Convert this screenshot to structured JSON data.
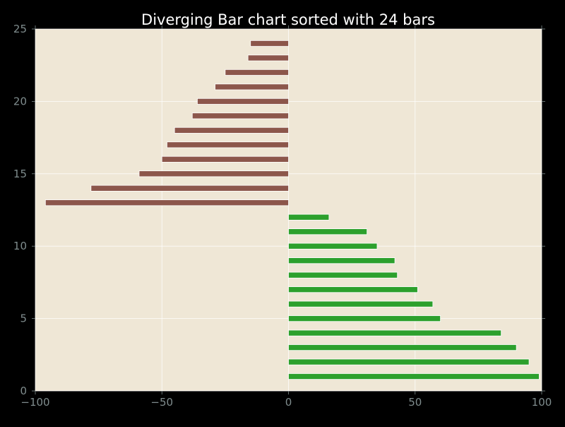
{
  "chart_data": {
    "type": "bar",
    "orientation": "horizontal",
    "title": "Diverging Bar chart sorted with 24 bars",
    "xlabel": "",
    "ylabel": "",
    "xlim": [
      -100,
      100
    ],
    "ylim": [
      0,
      25
    ],
    "x_ticks": [
      -100,
      -50,
      0,
      50,
      100
    ],
    "x_tick_labels": [
      "−100",
      "−50",
      "0",
      "50",
      "100"
    ],
    "y_ticks": [
      0,
      5,
      10,
      15,
      20,
      25
    ],
    "y_tick_labels": [
      "0",
      "5",
      "10",
      "15",
      "20",
      "25"
    ],
    "grid": true,
    "legend": "none",
    "colors": {
      "figure_background": "#000000",
      "plot_background": "#efe7d6",
      "positive_bar": "#2ca02c",
      "negative_bar": "#8c564b",
      "bar_edge": "#ffffff",
      "grid": "#ffffff",
      "tick_label": "#7f8c8d",
      "title": "#ffffff",
      "axis_spine": "#000000"
    },
    "bars": [
      {
        "y": 1,
        "value": 99
      },
      {
        "y": 2,
        "value": 95
      },
      {
        "y": 3,
        "value": 90
      },
      {
        "y": 4,
        "value": 84
      },
      {
        "y": 5,
        "value": 60
      },
      {
        "y": 6,
        "value": 57
      },
      {
        "y": 7,
        "value": 51
      },
      {
        "y": 8,
        "value": 43
      },
      {
        "y": 9,
        "value": 42
      },
      {
        "y": 10,
        "value": 35
      },
      {
        "y": 11,
        "value": 31
      },
      {
        "y": 12,
        "value": 16
      },
      {
        "y": 13,
        "value": -96
      },
      {
        "y": 14,
        "value": -78
      },
      {
        "y": 15,
        "value": -59
      },
      {
        "y": 16,
        "value": -50
      },
      {
        "y": 17,
        "value": -48
      },
      {
        "y": 18,
        "value": -45
      },
      {
        "y": 19,
        "value": -38
      },
      {
        "y": 20,
        "value": -36
      },
      {
        "y": 21,
        "value": -29
      },
      {
        "y": 22,
        "value": -25
      },
      {
        "y": 23,
        "value": -16
      },
      {
        "y": 24,
        "value": -15
      }
    ]
  }
}
